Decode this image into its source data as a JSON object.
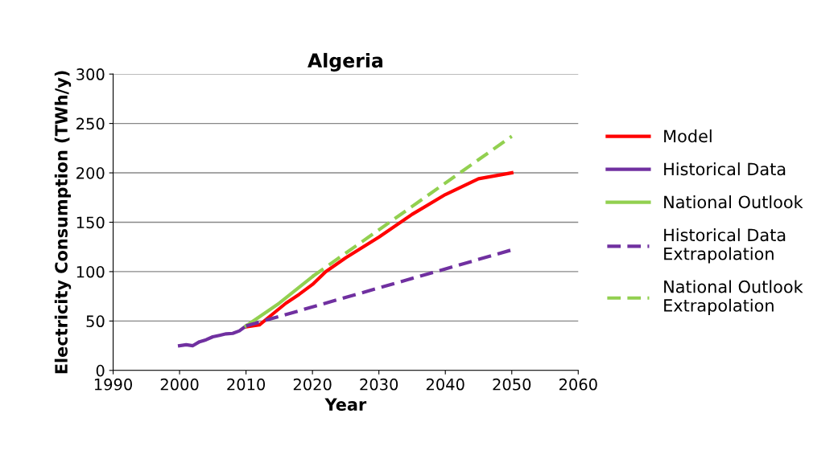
{
  "chart_data": {
    "type": "line",
    "title": "Algeria",
    "xlabel": "Year",
    "ylabel": "Electricity Consumption (TWh/y)",
    "xlim": [
      1990,
      2060
    ],
    "xticks": [
      1990,
      2000,
      2010,
      2020,
      2030,
      2040,
      2050,
      2060
    ],
    "ylim": [
      0,
      300
    ],
    "yticks": [
      0,
      50,
      100,
      150,
      200,
      250,
      300
    ],
    "grid": "y",
    "legend": "right",
    "marker": "none",
    "series": [
      {
        "name": "Model",
        "color": "#ff0000",
        "line_style": "solid",
        "x": [
          2010,
          2012,
          2014,
          2016,
          2018,
          2020,
          2022,
          2025,
          2030,
          2035,
          2040,
          2045,
          2050
        ],
        "values": [
          44,
          46,
          57,
          68,
          77,
          87,
          100,
          114,
          135,
          158,
          178,
          194,
          200
        ]
      },
      {
        "name": "Historical Data",
        "color": "#7030a0",
        "line_style": "solid",
        "x": [
          2000,
          2001,
          2002,
          2003,
          2004,
          2005,
          2006,
          2007,
          2008,
          2009,
          2010
        ],
        "values": [
          25,
          26,
          25,
          29,
          31,
          34,
          35.5,
          37,
          37.5,
          40,
          45
        ]
      },
      {
        "name": "National Outlook",
        "color": "#92d050",
        "line_style": "solid",
        "x": [
          2010,
          2015,
          2020
        ],
        "values": [
          45,
          68,
          95
        ]
      },
      {
        "name": "Historical Data\nExtrapolation",
        "color": "#7030a0",
        "line_style": "dashed",
        "x": [
          2010,
          2050
        ],
        "values": [
          45,
          122
        ]
      },
      {
        "name": "National Outlook\nExtrapolation",
        "color": "#92d050",
        "line_style": "dashed",
        "x": [
          2020,
          2050
        ],
        "values": [
          95,
          237
        ]
      }
    ]
  }
}
